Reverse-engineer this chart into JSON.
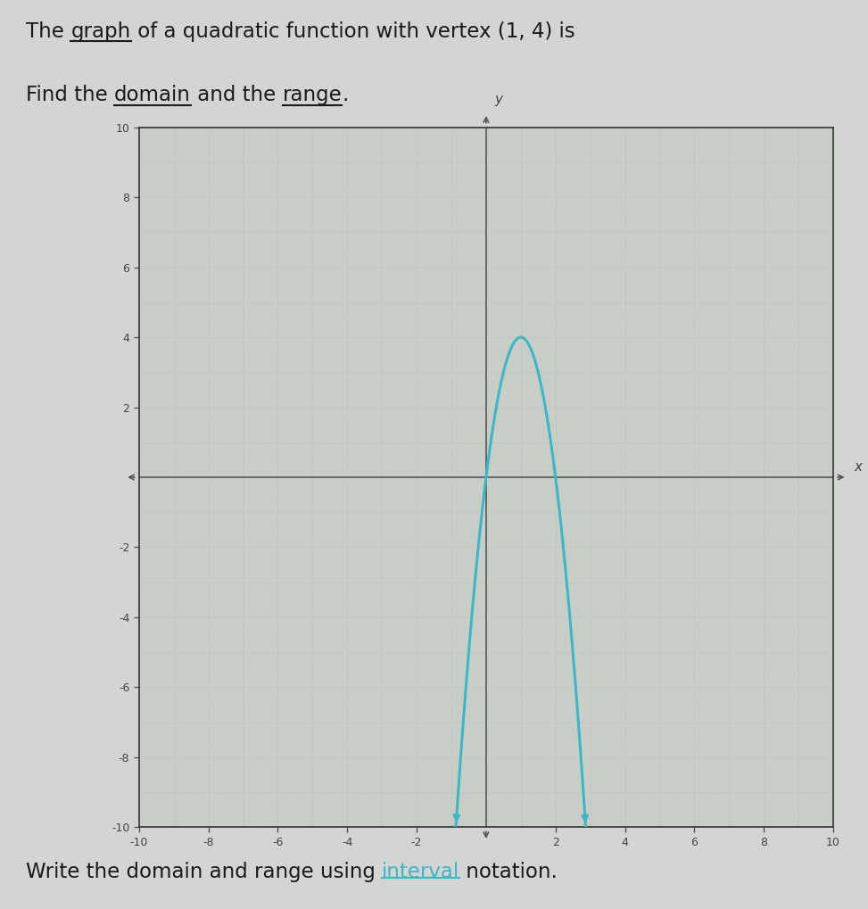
{
  "vertex_x": 1,
  "vertex_y": 4,
  "parabola_a": -4.0,
  "xmin": -10,
  "xmax": 10,
  "ymin": -10,
  "ymax": 10,
  "curve_color": "#3cb8c4",
  "curve_linewidth": 2.2,
  "background_color": "#d4d4d4",
  "plot_bg_color": "#c8cdc8",
  "grid_color": "#b0b8b0",
  "axis_color": "#555555",
  "text_color": "#1a1a1a",
  "xlabel": "x",
  "ylabel": "y",
  "xticks": [
    -10,
    -8,
    -6,
    -4,
    -2,
    2,
    4,
    6,
    8,
    10
  ],
  "yticks": [
    -10,
    -8,
    -6,
    -4,
    -2,
    2,
    4,
    6,
    8,
    10
  ],
  "line1_segments": [
    {
      "text": "The ",
      "underline": false,
      "color": "#1a1a1a"
    },
    {
      "text": "graph",
      "underline": true,
      "color": "#1a1a1a"
    },
    {
      "text": " of a quadratic function with vertex (1, 4) is",
      "underline": false,
      "color": "#1a1a1a"
    }
  ],
  "line2_segments": [
    {
      "text": "Find the ",
      "underline": false,
      "color": "#1a1a1a"
    },
    {
      "text": "domain",
      "underline": true,
      "color": "#1a1a1a"
    },
    {
      "text": " and the ",
      "underline": false,
      "color": "#1a1a1a"
    },
    {
      "text": "range",
      "underline": true,
      "color": "#1a1a1a"
    },
    {
      "text": ".",
      "underline": false,
      "color": "#1a1a1a"
    }
  ],
  "bottom_segments": [
    {
      "text": "Write the domain and range using ",
      "underline": false,
      "color": "#1a1a1a"
    },
    {
      "text": "interval",
      "underline": true,
      "color": "#3cb8c4"
    },
    {
      "text": " notation.",
      "underline": false,
      "color": "#1a1a1a"
    }
  ]
}
